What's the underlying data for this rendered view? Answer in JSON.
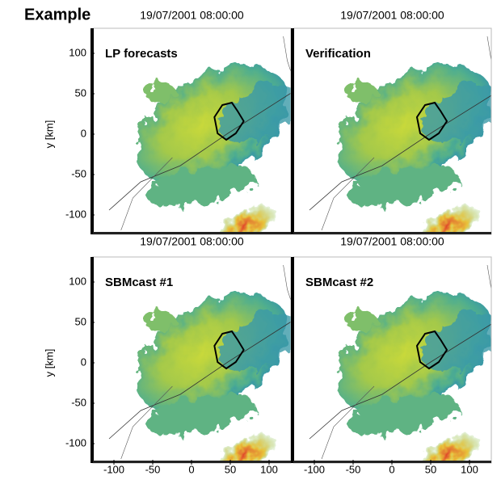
{
  "title": "Example",
  "panels": [
    {
      "timestamp": "19/07/2001 08:00:00",
      "label": "LP forecasts"
    },
    {
      "timestamp": "19/07/2001 08:00:00",
      "label": "Verification"
    },
    {
      "timestamp": "19/07/2001 08:00:00",
      "label": "SBMcast #1"
    },
    {
      "timestamp": "19/07/2001 08:00:00",
      "label": "SBMcast #2"
    }
  ],
  "y_axis": {
    "label": "y [km]",
    "ticks": [
      100,
      50,
      0,
      -50,
      -100
    ]
  },
  "x_axis": {
    "ticks": [
      -100,
      -50,
      0,
      50,
      100
    ]
  }
}
